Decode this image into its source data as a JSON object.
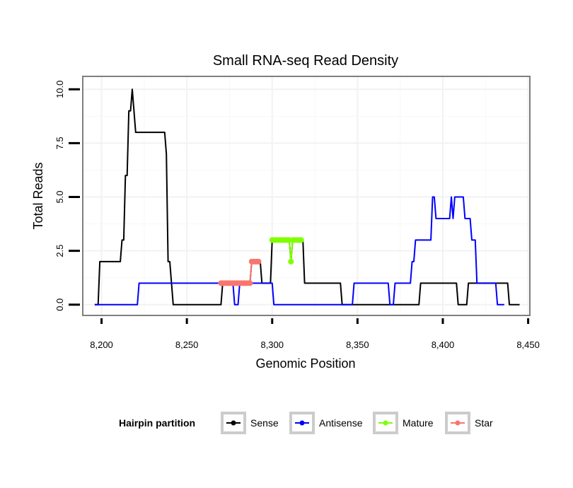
{
  "chart_data": {
    "type": "line",
    "title": "Small RNA-seq Read Density",
    "xlabel": "Genomic Position",
    "ylabel": "Total Reads",
    "xlim": [
      8189,
      8451
    ],
    "ylim": [
      -0.5,
      10.6
    ],
    "xticks": [
      8200,
      8250,
      8300,
      8350,
      8400,
      8450
    ],
    "xtick_labels": [
      "8,200",
      "8,250",
      "8,300",
      "8,350",
      "8,400",
      "8,450"
    ],
    "yticks": [
      0,
      2.5,
      5,
      7.5,
      10
    ],
    "ytick_labels": [
      "0.0",
      "2.5",
      "5.0",
      "7.5",
      "10.0"
    ],
    "grid": true,
    "legend": {
      "title": "Hairpin partition",
      "position": "bottom",
      "entries": [
        "Sense",
        "Antisense",
        "Mature",
        "Star"
      ]
    },
    "series": [
      {
        "name": "Sense",
        "color": "#000000",
        "marker": false,
        "x": [
          8196,
          8198,
          8199,
          8211,
          8212,
          8213,
          8214,
          8215,
          8216,
          8217,
          8218,
          8219,
          8220,
          8237,
          8238,
          8239,
          8240,
          8241,
          8242,
          8270,
          8271,
          8287,
          8288,
          8293,
          8294,
          8299,
          8300,
          8310,
          8311,
          8312,
          8313,
          8318,
          8319,
          8340,
          8341,
          8386,
          8387,
          8408,
          8409,
          8414,
          8415,
          8417,
          8418,
          8438,
          8439,
          8445
        ],
        "y": [
          0,
          0,
          2,
          2,
          3,
          3,
          6,
          6,
          9,
          9,
          10,
          9,
          8,
          8,
          7,
          2,
          2,
          1,
          0,
          0,
          1,
          1,
          2,
          2,
          1,
          1,
          3,
          3,
          2,
          3,
          3,
          3,
          1,
          1,
          0,
          0,
          1,
          1,
          0,
          0,
          1,
          1,
          1,
          1,
          0,
          0
        ]
      },
      {
        "name": "Antisense",
        "color": "#0000ff",
        "marker": false,
        "x": [
          8196,
          8221,
          8222,
          8277,
          8278,
          8280,
          8281,
          8300,
          8301,
          8340,
          8341,
          8347,
          8348,
          8368,
          8369,
          8371,
          8372,
          8381,
          8382,
          8383,
          8384,
          8393,
          8394,
          8395,
          8396,
          8404,
          8405,
          8406,
          8407,
          8408,
          8409,
          8412,
          8413,
          8416,
          8417,
          8419,
          8420,
          8426,
          8427,
          8431,
          8432,
          8436
        ],
        "y": [
          0,
          0,
          1,
          1,
          0,
          0,
          1,
          1,
          0,
          0,
          0,
          0,
          1,
          1,
          0,
          0,
          1,
          1,
          2,
          2,
          3,
          3,
          5,
          5,
          4,
          4,
          5,
          4,
          5,
          5,
          5,
          5,
          4,
          4,
          3,
          3,
          1,
          1,
          1,
          1,
          0,
          0
        ]
      },
      {
        "name": "Mature",
        "color": "#7fff00",
        "marker": true,
        "x": [
          8300,
          8301,
          8302,
          8303,
          8304,
          8305,
          8306,
          8307,
          8308,
          8309,
          8310,
          8311,
          8312,
          8313,
          8314,
          8315,
          8316,
          8317
        ],
        "y": [
          3,
          3,
          3,
          3,
          3,
          3,
          3,
          3,
          3,
          3,
          3,
          2,
          3,
          3,
          3,
          3,
          3,
          3
        ]
      },
      {
        "name": "Star",
        "color": "#f8766d",
        "marker": true,
        "x": [
          8270,
          8271,
          8272,
          8273,
          8274,
          8275,
          8276,
          8277,
          8278,
          8279,
          8280,
          8281,
          8282,
          8283,
          8284,
          8285,
          8286,
          8287,
          8288,
          8289,
          8290,
          8291,
          8292
        ],
        "y": [
          1,
          1,
          1,
          1,
          1,
          1,
          1,
          1,
          1,
          1,
          1,
          1,
          1,
          1,
          1,
          1,
          1,
          1,
          2,
          2,
          2,
          2,
          2
        ]
      }
    ]
  }
}
